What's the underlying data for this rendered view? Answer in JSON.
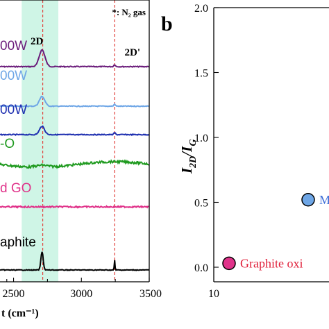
{
  "panel_a": {
    "note": "*: N₂ gas",
    "xlabel_fragment": "t (cm⁻¹)",
    "peak_labels": [
      "2D",
      "2D'"
    ],
    "band_color": "#bff2dd",
    "dashed_color": "#e0403a"
  },
  "panel_b": {
    "letter": "b",
    "ylabel_main": "I",
    "ylabel_sub1": "2D",
    "ylabel_slash": "/",
    "ylabel_sub2": "G"
  },
  "chart_data": [
    {
      "type": "line",
      "xlabel": "t (cm⁻¹)",
      "xlim": [
        2400,
        3500
      ],
      "x_ticks": [
        "2500",
        "3000",
        "3500"
      ],
      "y_ticks": [],
      "series": [
        {
          "name": "00W",
          "color": "#6a1b7a"
        },
        {
          "name": "00W",
          "color": "#6ea6e6"
        },
        {
          "name": "00W",
          "color": "#1e2fb0"
        },
        {
          "name": "-O",
          "color": "#1f9a1f"
        },
        {
          "name": "d GO",
          "color": "#e0338a"
        },
        {
          "name": "aphite",
          "color": "#000000"
        }
      ],
      "annotations": [
        "2D",
        "2D'",
        "*: N₂ gas"
      ]
    },
    {
      "type": "scatter",
      "ylabel": "I2D/IG",
      "ylim": [
        0.0,
        2.0
      ],
      "y_ticks": [
        "0.0",
        "0.5",
        "1.0",
        "1.5",
        "2.0"
      ],
      "x_ticks": [
        "10"
      ],
      "points": [
        {
          "label": "Graphite oxi",
          "y": 0.03,
          "color": "#e0338a",
          "label_color": "#e0203a"
        },
        {
          "label": "M",
          "y": 0.52,
          "color": "#6ea6e6",
          "label_color": "#3f6fd8"
        }
      ]
    }
  ]
}
